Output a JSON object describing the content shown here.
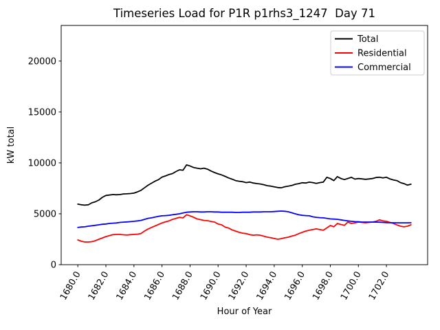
{
  "figure": {
    "background": "#ffffff"
  },
  "chart_data": {
    "type": "line",
    "title": "Timeseries Load for P1R p1rhs3_1247  Day 71",
    "xlabel": "Hour of Year",
    "ylabel": "kW total",
    "grid": false,
    "legend_position": "upper right",
    "xlim": [
      1678.8125,
      1704.9375
    ],
    "ylim": [
      0,
      23500
    ],
    "xticks": {
      "values": [
        1680,
        1682,
        1684,
        1686,
        1688,
        1690,
        1692,
        1694,
        1696,
        1698,
        1700,
        1702
      ],
      "labels": [
        "1680.0",
        "1682.0",
        "1684.0",
        "1686.0",
        "1688.0",
        "1690.0",
        "1692.0",
        "1694.0",
        "1696.0",
        "1698.0",
        "1700.0",
        "1702.0"
      ]
    },
    "yticks": {
      "values": [
        0,
        5000,
        10000,
        15000,
        20000
      ],
      "labels": [
        "0",
        "5000",
        "10000",
        "15000",
        "20000"
      ]
    },
    "x": [
      1680.0,
      1680.25,
      1680.5,
      1680.75,
      1681.0,
      1681.25,
      1681.5,
      1681.75,
      1682.0,
      1682.25,
      1682.5,
      1682.75,
      1683.0,
      1683.25,
      1683.5,
      1683.75,
      1684.0,
      1684.25,
      1684.5,
      1684.75,
      1685.0,
      1685.25,
      1685.5,
      1685.75,
      1686.0,
      1686.25,
      1686.5,
      1686.75,
      1687.0,
      1687.25,
      1687.5,
      1687.75,
      1688.0,
      1688.25,
      1688.5,
      1688.75,
      1689.0,
      1689.25,
      1689.5,
      1689.75,
      1690.0,
      1690.25,
      1690.5,
      1690.75,
      1691.0,
      1691.25,
      1691.5,
      1691.75,
      1692.0,
      1692.25,
      1692.5,
      1692.75,
      1693.0,
      1693.25,
      1693.5,
      1693.75,
      1694.0,
      1694.25,
      1694.5,
      1694.75,
      1695.0,
      1695.25,
      1695.5,
      1695.75,
      1696.0,
      1696.25,
      1696.5,
      1696.75,
      1697.0,
      1697.25,
      1697.5,
      1697.75,
      1698.0,
      1698.25,
      1698.5,
      1698.75,
      1699.0,
      1699.25,
      1699.5,
      1699.75,
      1700.0,
      1700.25,
      1700.5,
      1700.75,
      1701.0,
      1701.25,
      1701.5,
      1701.75,
      1702.0,
      1702.25,
      1702.5,
      1702.75,
      1703.0,
      1703.25,
      1703.5,
      1703.75
    ],
    "series": [
      {
        "key": "total",
        "name": "Total",
        "color": "#000000",
        "values": [
          5950,
          5880,
          5850,
          5880,
          6080,
          6180,
          6350,
          6620,
          6800,
          6840,
          6890,
          6870,
          6890,
          6950,
          6960,
          6990,
          7030,
          7150,
          7300,
          7550,
          7800,
          8000,
          8200,
          8350,
          8600,
          8720,
          8850,
          8950,
          9150,
          9320,
          9280,
          9800,
          9700,
          9550,
          9480,
          9420,
          9480,
          9380,
          9200,
          9050,
          8920,
          8820,
          8680,
          8520,
          8400,
          8260,
          8200,
          8150,
          8060,
          8120,
          8020,
          7970,
          7930,
          7860,
          7760,
          7720,
          7650,
          7580,
          7550,
          7660,
          7720,
          7780,
          7900,
          7960,
          8050,
          8020,
          8110,
          8060,
          7980,
          8060,
          8120,
          8580,
          8460,
          8260,
          8650,
          8470,
          8360,
          8470,
          8580,
          8410,
          8460,
          8430,
          8390,
          8420,
          8460,
          8560,
          8590,
          8530,
          8590,
          8420,
          8320,
          8260,
          8060,
          7960,
          7810,
          7910
        ]
      },
      {
        "key": "residential",
        "name": "Residential",
        "color": "#ff0000",
        "values": [
          2430,
          2300,
          2230,
          2230,
          2260,
          2360,
          2500,
          2630,
          2760,
          2850,
          2950,
          2970,
          2970,
          2940,
          2910,
          2950,
          2970,
          3000,
          3060,
          3300,
          3500,
          3650,
          3800,
          3950,
          4100,
          4200,
          4300,
          4450,
          4550,
          4650,
          4600,
          4900,
          4800,
          4660,
          4500,
          4420,
          4350,
          4320,
          4250,
          4190,
          4000,
          3920,
          3700,
          3600,
          3420,
          3300,
          3180,
          3100,
          3050,
          2950,
          2900,
          2930,
          2900,
          2800,
          2710,
          2650,
          2570,
          2500,
          2560,
          2640,
          2700,
          2810,
          2900,
          3050,
          3180,
          3300,
          3380,
          3450,
          3520,
          3450,
          3380,
          3610,
          3850,
          3720,
          4050,
          3950,
          3860,
          4190,
          4050,
          4110,
          4190,
          4150,
          4120,
          4150,
          4190,
          4260,
          4400,
          4300,
          4260,
          4150,
          4050,
          3900,
          3780,
          3720,
          3780,
          3920
        ]
      },
      {
        "key": "commercial",
        "name": "Commercial",
        "color": "#0000ff",
        "values": [
          3650,
          3700,
          3720,
          3780,
          3820,
          3870,
          3920,
          3970,
          4000,
          4050,
          4080,
          4100,
          4150,
          4180,
          4200,
          4230,
          4260,
          4300,
          4350,
          4450,
          4550,
          4600,
          4680,
          4750,
          4800,
          4820,
          4850,
          4900,
          4950,
          5000,
          5080,
          5150,
          5180,
          5200,
          5200,
          5180,
          5180,
          5200,
          5200,
          5180,
          5180,
          5150,
          5150,
          5150,
          5150,
          5130,
          5130,
          5150,
          5150,
          5150,
          5180,
          5180,
          5180,
          5200,
          5200,
          5200,
          5220,
          5250,
          5270,
          5250,
          5200,
          5100,
          5000,
          4900,
          4850,
          4820,
          4800,
          4700,
          4650,
          4620,
          4600,
          4550,
          4500,
          4480,
          4460,
          4400,
          4350,
          4300,
          4260,
          4230,
          4220,
          4190,
          4190,
          4190,
          4190,
          4180,
          4170,
          4150,
          4130,
          4120,
          4120,
          4110,
          4110,
          4110,
          4110,
          4120
        ]
      }
    ]
  }
}
